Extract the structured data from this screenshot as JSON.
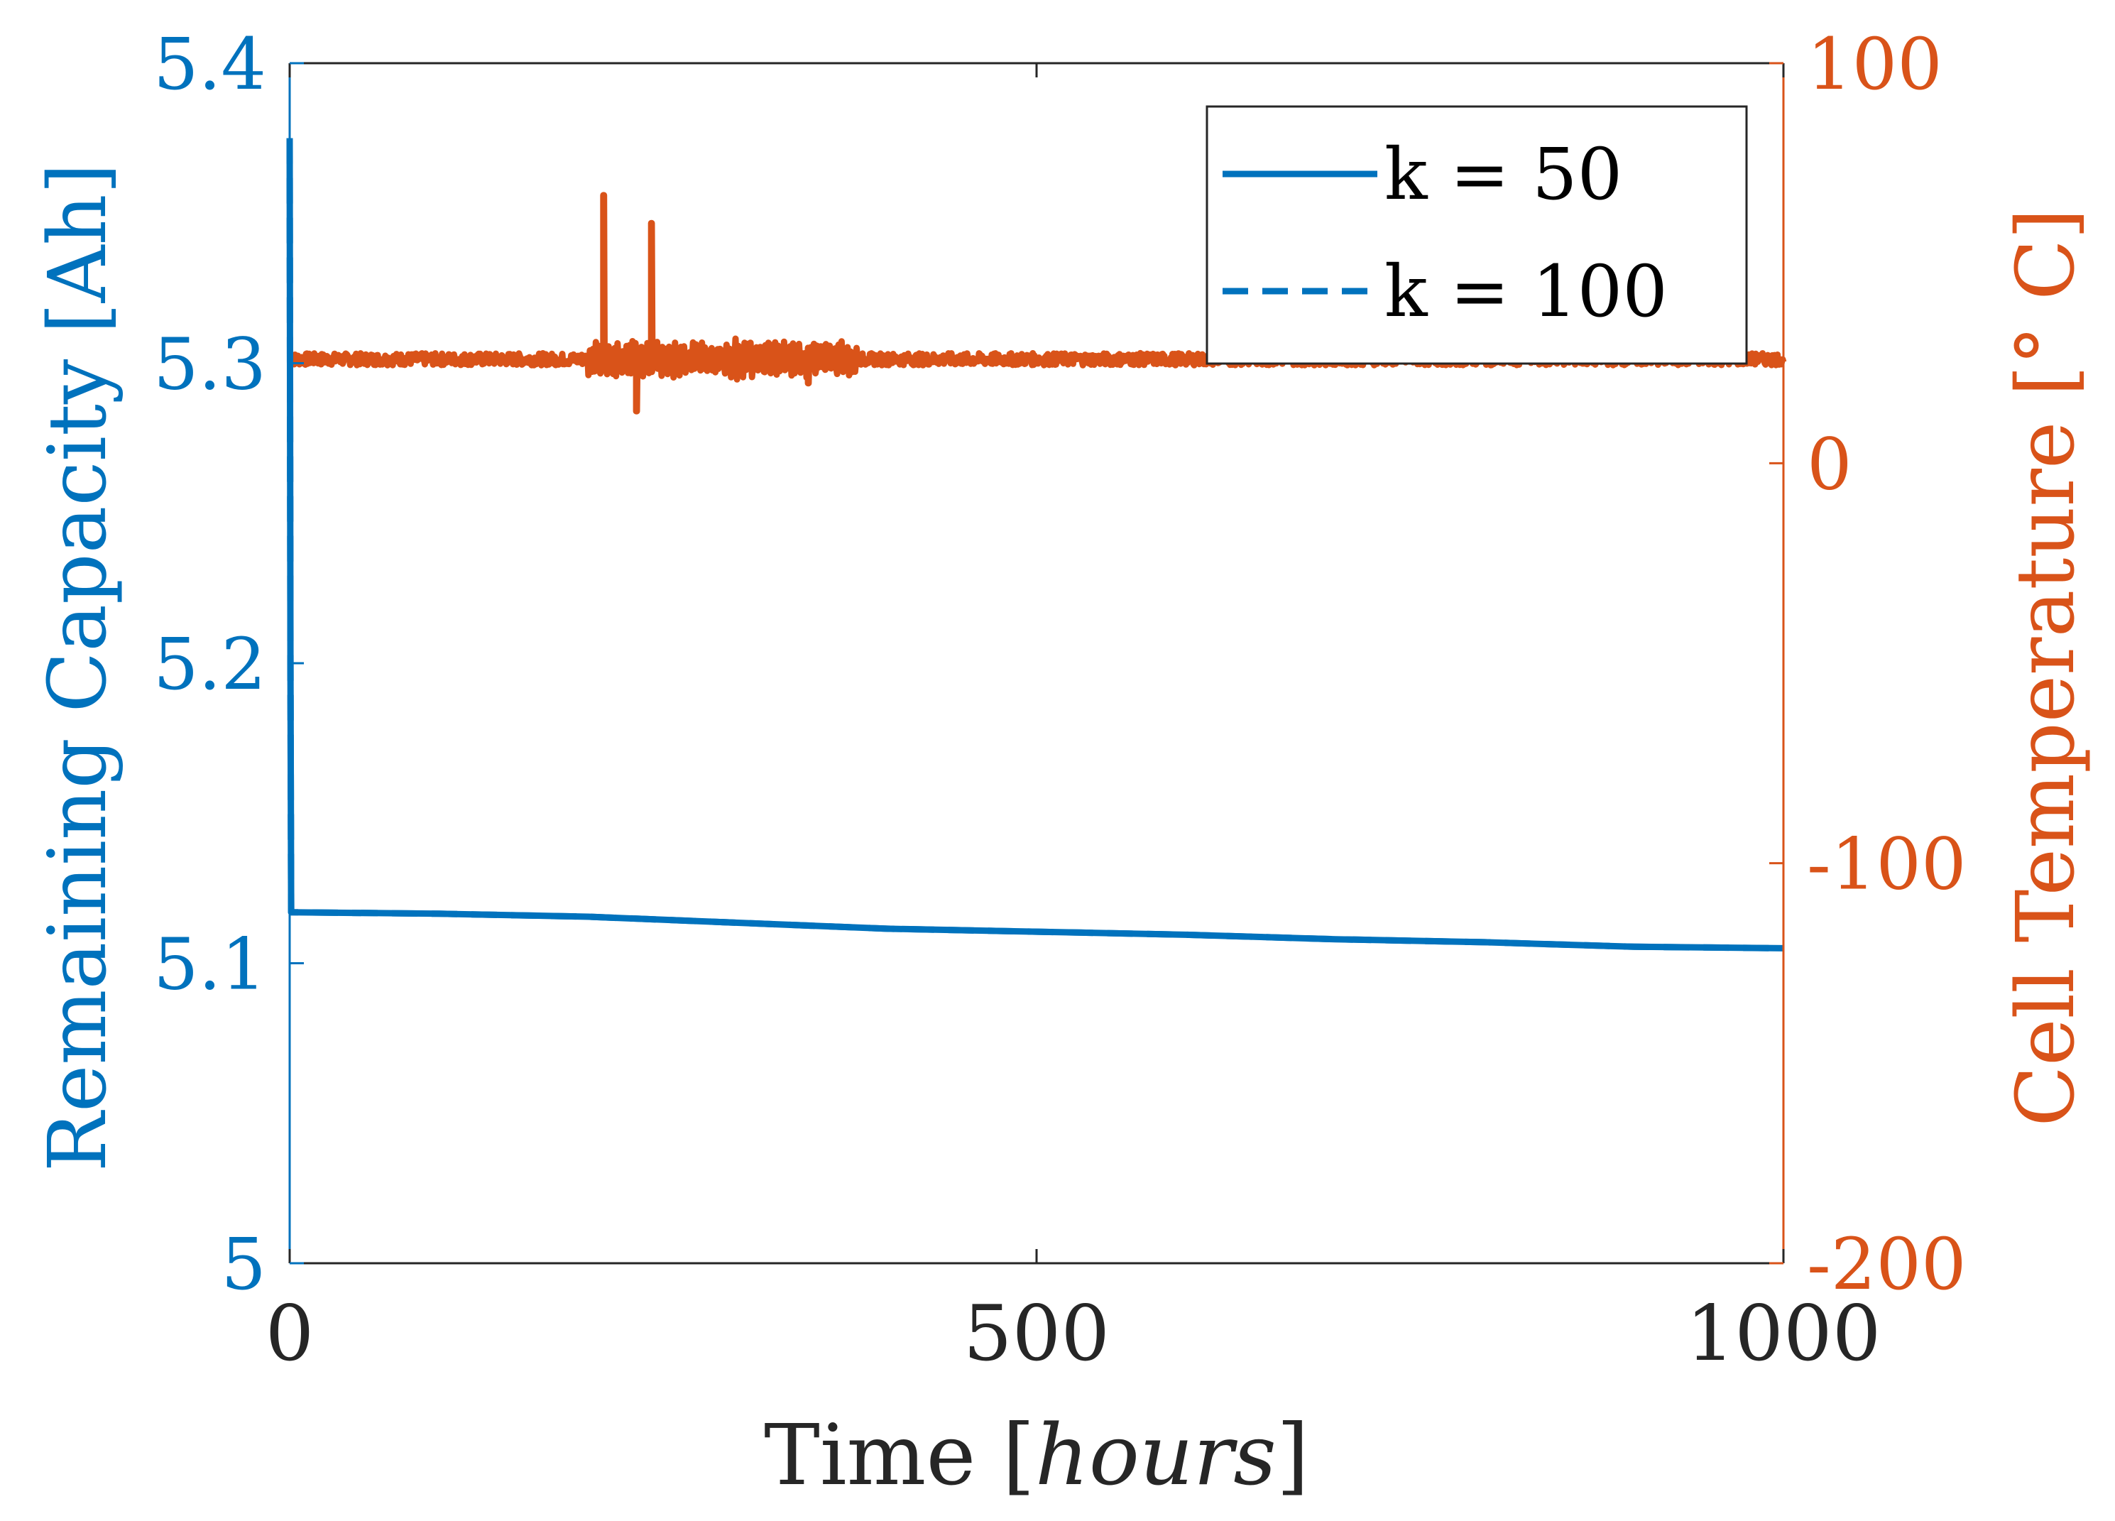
{
  "chart_data": {
    "type": "line",
    "dual_axis": true,
    "x": {
      "label": "Time",
      "label_unit": "hours",
      "range": [
        0,
        1000
      ],
      "ticks": [
        0,
        500,
        1000
      ],
      "tick_labels": [
        "0",
        "500",
        "1000"
      ]
    },
    "y_left": {
      "label": "Remaining Capacity [Ah]",
      "range": [
        5.0,
        5.4
      ],
      "ticks": [
        5.0,
        5.1,
        5.2,
        5.3,
        5.4
      ],
      "tick_labels": [
        "5",
        "5.1",
        "5.2",
        "5.3",
        "5.4"
      ],
      "color": "#0072BD"
    },
    "y_right": {
      "label": "Cell Temperature [° C]",
      "range": [
        -200,
        100
      ],
      "ticks": [
        -200,
        -100,
        0,
        100
      ],
      "tick_labels": [
        "-200",
        "-100",
        "0",
        "100"
      ],
      "color": "#D95319"
    },
    "series": [
      {
        "name": "k = 50",
        "axis": "left",
        "style": "solid",
        "color": "#0072BD",
        "points": [
          [
            0,
            5.375
          ],
          [
            0.5,
            5.2
          ],
          [
            1,
            5.117
          ],
          [
            100,
            5.1165
          ],
          [
            200,
            5.1155
          ],
          [
            300,
            5.1135
          ],
          [
            400,
            5.1115
          ],
          [
            500,
            5.1105
          ],
          [
            600,
            5.1095
          ],
          [
            700,
            5.108
          ],
          [
            800,
            5.107
          ],
          [
            900,
            5.1055
          ],
          [
            1000,
            5.105
          ]
        ]
      },
      {
        "name": "k = 100",
        "axis": "left",
        "style": "dashed",
        "color": "#0072BD",
        "points": [
          [
            0,
            5.375
          ],
          [
            0.5,
            5.2
          ],
          [
            1,
            5.117
          ],
          [
            100,
            5.1165
          ],
          [
            200,
            5.1155
          ],
          [
            300,
            5.1135
          ],
          [
            400,
            5.1115
          ],
          [
            500,
            5.1105
          ],
          [
            600,
            5.1095
          ],
          [
            700,
            5.108
          ],
          [
            800,
            5.107
          ],
          [
            900,
            5.1055
          ],
          [
            1000,
            5.105
          ]
        ]
      },
      {
        "name": "Cell Temperature",
        "axis": "right",
        "style": "solid",
        "color": "#D95319",
        "baseline": 26,
        "noise_amplitude": 1.5,
        "oscillation": {
          "start": 200,
          "end": 380,
          "amplitude": 4
        },
        "spikes": [
          {
            "x": 210,
            "value": 67
          },
          {
            "x": 232,
            "value": 13
          },
          {
            "x": 242,
            "value": 60
          },
          {
            "x": 347,
            "value": 20
          }
        ]
      }
    ],
    "legend": {
      "position": "top-right",
      "entries": [
        {
          "label": "k = 50",
          "style": "solid",
          "color": "#0072BD"
        },
        {
          "label": "k = 100",
          "style": "dashed",
          "color": "#0072BD"
        }
      ]
    }
  }
}
